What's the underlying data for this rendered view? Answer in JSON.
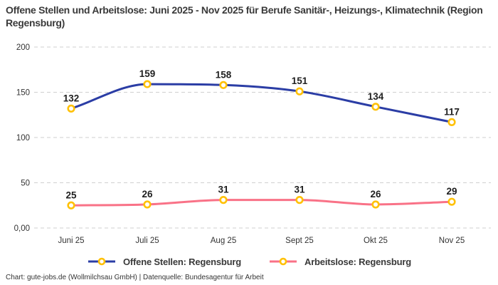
{
  "title": "Offene Stellen und Arbeitslose: Juni 2025 - Nov 2025 für Berufe Sanitär-, Heizungs-, Klimatechnik (Region Regensburg)",
  "footer": "Chart: gute-jobs.de (Wollmilchsau GmbH) | Datenquelle: Bundesagentur für Arbeit",
  "chart_data": {
    "type": "line",
    "title": "Offene Stellen und Arbeitslose: Juni 2025 - Nov 2025 für Berufe Sanitär-, Heizungs-, Klimatechnik (Region Regensburg)",
    "categories": [
      "Juni 25",
      "Juli 25",
      "Aug 25",
      "Sept 25",
      "Okt 25",
      "Nov 25"
    ],
    "series": [
      {
        "name": "Offene Stellen: Regensburg",
        "values": [
          132,
          159,
          158,
          151,
          134,
          117
        ],
        "color": "#2B3DA5"
      },
      {
        "name": "Arbeitslose: Regensburg",
        "values": [
          25,
          26,
          31,
          31,
          26,
          29
        ],
        "color": "#F97287"
      }
    ],
    "marker_color": "#FFC107",
    "marker_fill": "#FFFFFF",
    "value_label_color": "#1F1F1F",
    "y_ticks": [
      "0,00",
      "50",
      "100",
      "150",
      "200"
    ],
    "y_tick_values": [
      0,
      50,
      100,
      150,
      200
    ],
    "ylim": [
      0,
      210
    ],
    "grid": "horizontal-dashed",
    "grid_color": "#CFCFCF",
    "tick_label_color": "#333333",
    "legend_position": "bottom",
    "curve": "smooth"
  }
}
